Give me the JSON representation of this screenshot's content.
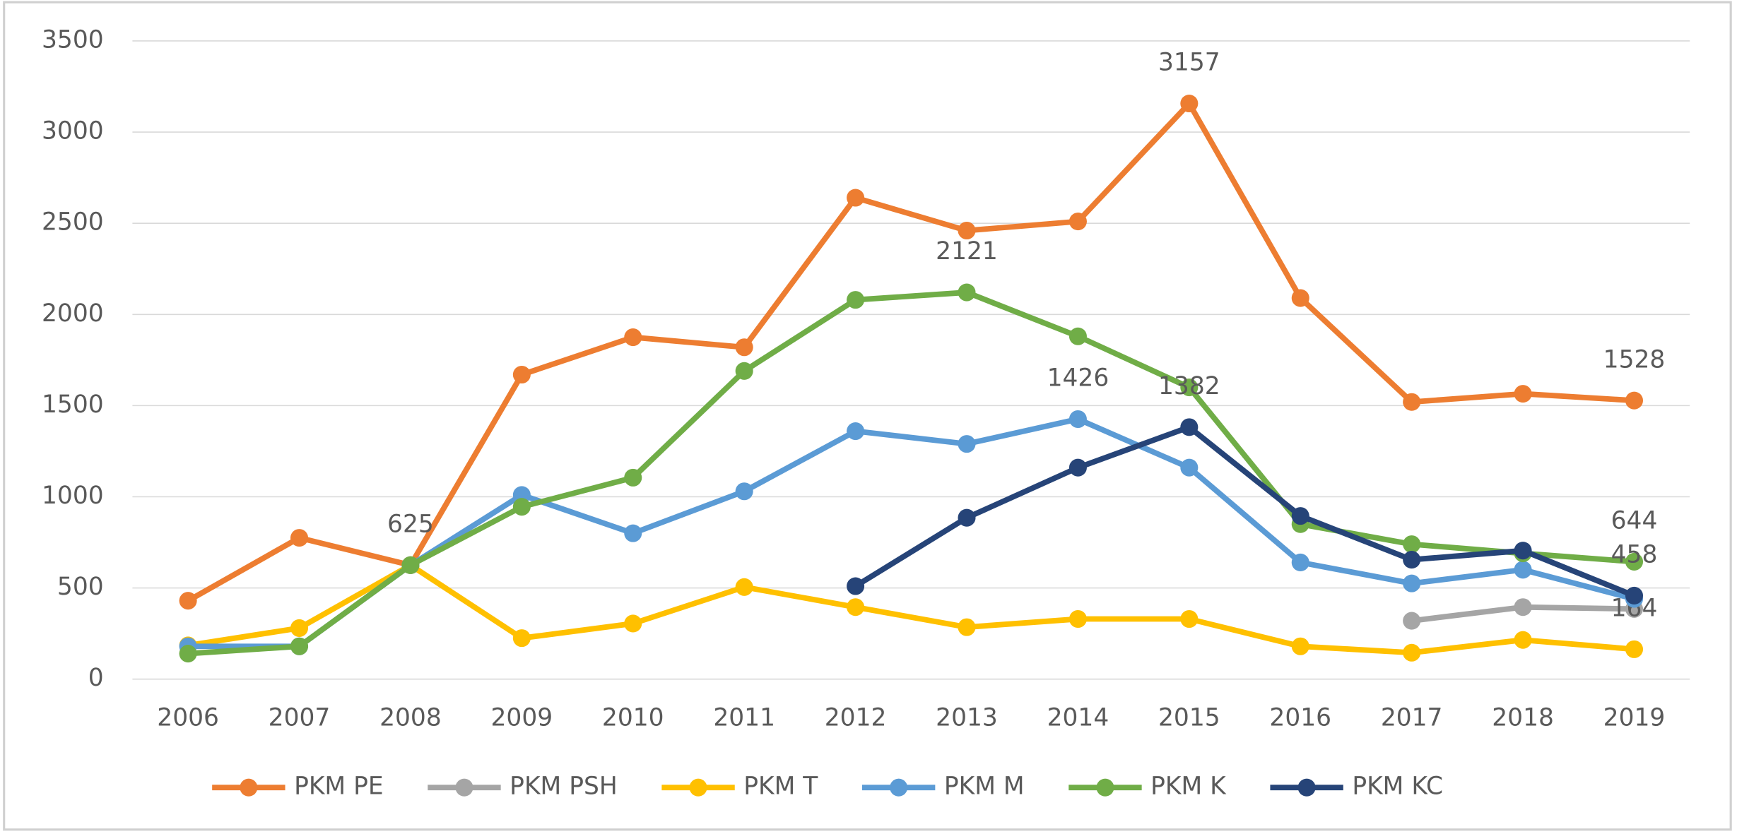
{
  "chart_data": {
    "type": "line",
    "categories": [
      "2006",
      "2007",
      "2008",
      "2009",
      "2010",
      "2011",
      "2012",
      "2013",
      "2014",
      "2015",
      "2016",
      "2017",
      "2018",
      "2019"
    ],
    "ylim": [
      0,
      3500
    ],
    "yticks": [
      0,
      500,
      1000,
      1500,
      2000,
      2500,
      3000,
      3500
    ],
    "grid": true,
    "legend": "bottom",
    "series": [
      {
        "name": "PKM PE",
        "color": "#ed7d31",
        "values": [
          430,
          775,
          625,
          1670,
          1875,
          1820,
          2640,
          2460,
          2510,
          3157,
          2090,
          1520,
          1565,
          1528
        ],
        "value_labels": [
          null,
          null,
          "625",
          null,
          null,
          null,
          null,
          null,
          null,
          "3157",
          null,
          null,
          null,
          "1528"
        ]
      },
      {
        "name": "PKM PSH",
        "color": "#a5a5a5",
        "values": [
          null,
          null,
          null,
          null,
          null,
          null,
          null,
          null,
          null,
          null,
          null,
          320,
          395,
          385
        ]
      },
      {
        "name": "PKM T",
        "color": "#ffc000",
        "values": [
          185,
          280,
          625,
          225,
          305,
          505,
          395,
          285,
          330,
          330,
          180,
          145,
          215,
          164
        ],
        "value_labels": [
          null,
          null,
          null,
          null,
          null,
          null,
          null,
          null,
          null,
          null,
          null,
          null,
          null,
          "164"
        ]
      },
      {
        "name": "PKM M",
        "color": "#5b9bd5",
        "values": [
          180,
          180,
          625,
          1010,
          800,
          1030,
          1360,
          1290,
          1426,
          1160,
          640,
          525,
          600,
          440
        ],
        "value_labels": [
          null,
          null,
          null,
          null,
          null,
          null,
          null,
          null,
          "1426",
          null,
          null,
          null,
          null,
          null
        ]
      },
      {
        "name": "PKM K",
        "color": "#70ad47",
        "values": [
          140,
          180,
          625,
          945,
          1105,
          1690,
          2080,
          2121,
          1880,
          1600,
          850,
          740,
          690,
          644
        ],
        "value_labels": [
          null,
          null,
          null,
          null,
          null,
          null,
          null,
          "2121",
          null,
          null,
          null,
          null,
          null,
          "644"
        ]
      },
      {
        "name": "PKM KC",
        "color": "#264478",
        "values": [
          null,
          null,
          null,
          null,
          null,
          null,
          510,
          885,
          1160,
          1382,
          895,
          655,
          705,
          458
        ],
        "value_labels": [
          null,
          null,
          null,
          null,
          null,
          null,
          null,
          null,
          null,
          "1382",
          null,
          null,
          null,
          "458"
        ]
      }
    ]
  }
}
